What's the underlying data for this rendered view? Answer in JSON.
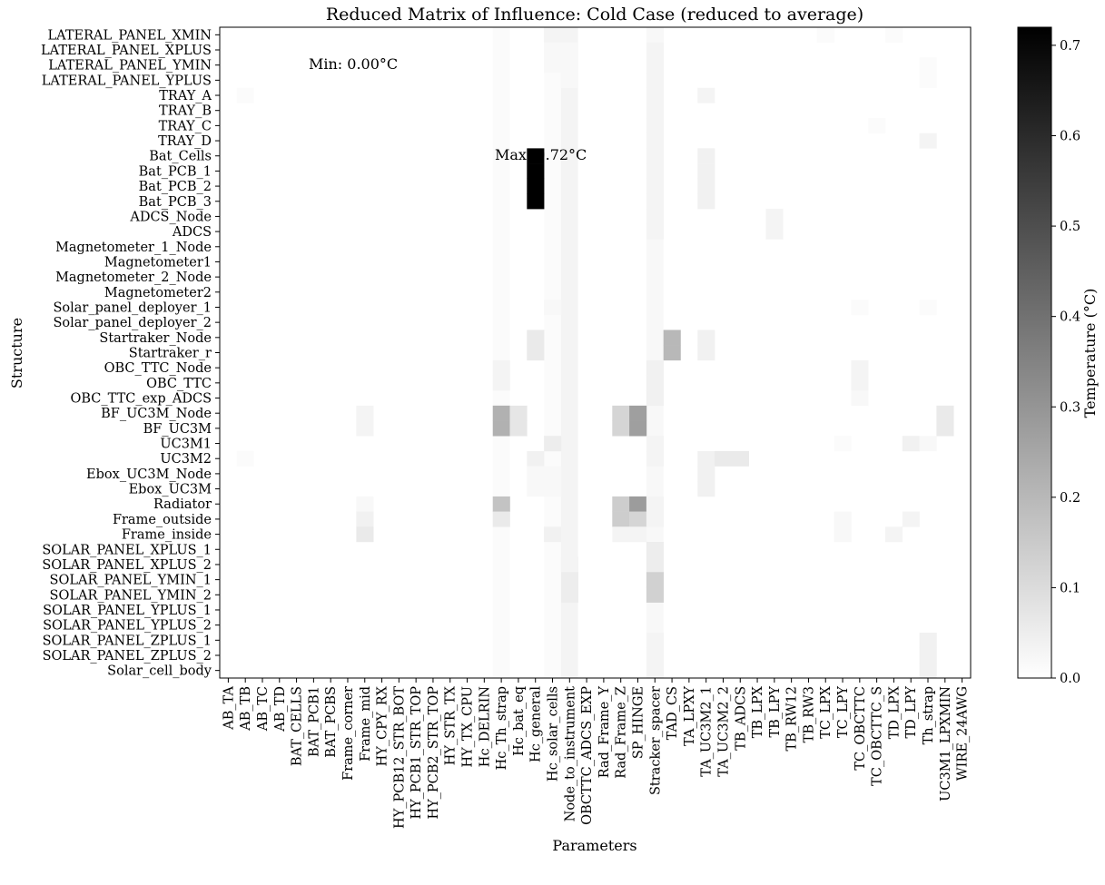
{
  "chart_data": {
    "type": "heatmap",
    "title": "Reduced Matrix of Influence: Cold Case (reduced to average)",
    "xlabel": "Parameters",
    "ylabel": "Structure",
    "colorbar_label": "Temperature (°C)",
    "colormap": "white-to-black (grayscale)",
    "vmin": 0.0,
    "vmax": 0.72,
    "colorbar_ticks": [
      "0.0",
      "0.1",
      "0.2",
      "0.3",
      "0.4",
      "0.5",
      "0.6",
      "0.7"
    ],
    "annotations": {
      "min_text": "Min: 0.00°C",
      "min_color": "#0000ff",
      "max_text": "Max: 0.72°C",
      "max_color": "#ff0000"
    },
    "x_categories": [
      "AB_TA",
      "AB_TB",
      "AB_TC",
      "AB_TD",
      "BAT_CELLS",
      "BAT_PCB1",
      "BAT_PCBS",
      "Frame_corner",
      "Frame_mid",
      "HY_CPY_RX",
      "HY_PCB12_STR_BOT",
      "HY_PCB1_STR_TOP",
      "HY_PCB2_STR_TOP",
      "HY_STR_TX",
      "HY_TX_CPU",
      "Hc_DELRIN",
      "Hc_Th_strap",
      "Hc_bat_eq",
      "Hc_general",
      "Hc_solar_cells",
      "Node_to_instrument",
      "OBCTTC_ADCS_EXP",
      "Rad_Frame_Y",
      "Rad_Frame_Z",
      "SP_HINGE",
      "Stracker_spacer",
      "TAD_CS",
      "TA_LPXY",
      "TA_UC3M2_1",
      "TA_UC3M2_2",
      "TB_ADCS",
      "TB_LPX",
      "TB_LPY",
      "TB_RW12",
      "TB_RW3",
      "TC_LPX",
      "TC_LPY",
      "TC_OBCTTC",
      "TC_OBCTTC_S",
      "TD_LPX",
      "TD_LPY",
      "Th_strap",
      "UC3M1_LPXMIN",
      "WIRE_24AWG"
    ],
    "y_categories": [
      "LATERAL_PANEL_XMIN",
      "LATERAL_PANEL_XPLUS",
      "LATERAL_PANEL_YMIN",
      "LATERAL_PANEL_YPLUS",
      "TRAY_A",
      "TRAY_B",
      "TRAY_C",
      "TRAY_D",
      "Bat_Cells",
      "Bat_PCB_1",
      "Bat_PCB_2",
      "Bat_PCB_3",
      "ADCS_Node",
      "ADCS",
      "Magnetometer_1_Node",
      "Magnetometer1",
      "Magnetometer_2_Node",
      "Magnetometer2",
      "Solar_panel_deployer_1",
      "Solar_panel_deployer_2",
      "Startraker_Node",
      "Startraker_r",
      "OBC_TTC_Node",
      "OBC_TTC",
      "OBC_TTC_exp_ADCS",
      "BF_UC3M_Node",
      "BF_UC3M",
      "UC3M1",
      "UC3M2",
      "Ebox_UC3M_Node",
      "Ebox_UC3M",
      "Radiator",
      "Frame_outside",
      "Frame_inside",
      "SOLAR_PANEL_XPLUS_1",
      "SOLAR_PANEL_XPLUS_2",
      "SOLAR_PANEL_YMIN_1",
      "SOLAR_PANEL_YMIN_2",
      "SOLAR_PANEL_YPLUS_1",
      "SOLAR_PANEL_YPLUS_2",
      "SOLAR_PANEL_ZPLUS_1",
      "SOLAR_PANEL_ZPLUS_2",
      "Solar_cell_body"
    ],
    "cells": [
      [
        "Bat_Cells",
        "Hc_general",
        0.72
      ],
      [
        "Bat_PCB_1",
        "Hc_general",
        0.72
      ],
      [
        "Bat_PCB_2",
        "Hc_general",
        0.72
      ],
      [
        "Bat_PCB_3",
        "Hc_general",
        0.72
      ],
      [
        "LATERAL_PANEL_XMIN",
        "Hc_solar_cells",
        0.03
      ],
      [
        "LATERAL_PANEL_XMIN",
        "Stracker_spacer",
        0.02
      ],
      [
        "LATERAL_PANEL_XMIN",
        "TD_LPX",
        0.01
      ],
      [
        "LATERAL_PANEL_XMIN",
        "TC_LPX",
        0.01
      ],
      [
        "LATERAL_PANEL_XPLUS",
        "Hc_solar_cells",
        0.02
      ],
      [
        "LATERAL_PANEL_XPLUS",
        "Node_to_instrument",
        0.02
      ],
      [
        "LATERAL_PANEL_XPLUS",
        "Stracker_spacer",
        0.03
      ],
      [
        "LATERAL_PANEL_YMIN",
        "Hc_solar_cells",
        0.02
      ],
      [
        "LATERAL_PANEL_YMIN",
        "Node_to_instrument",
        0.02
      ],
      [
        "LATERAL_PANEL_YMIN",
        "Stracker_spacer",
        0.03
      ],
      [
        "LATERAL_PANEL_YMIN",
        "Th_strap",
        0.01
      ],
      [
        "LATERAL_PANEL_YPLUS",
        "Node_to_instrument",
        0.02
      ],
      [
        "LATERAL_PANEL_YPLUS",
        "Stracker_spacer",
        0.03
      ],
      [
        "LATERAL_PANEL_YPLUS",
        "Th_strap",
        0.01
      ],
      [
        "TRAY_A",
        "TA_UC3M2_1",
        0.03
      ],
      [
        "TRAY_A",
        "Stracker_spacer",
        0.03
      ],
      [
        "TRAY_A",
        "AB_TB",
        0.01
      ],
      [
        "TRAY_B",
        "Stracker_spacer",
        0.03
      ],
      [
        "TRAY_C",
        "Stracker_spacer",
        0.03
      ],
      [
        "TRAY_C",
        "TC_OBCTTC_S",
        0.01
      ],
      [
        "TRAY_D",
        "Stracker_spacer",
        0.03
      ],
      [
        "TRAY_D",
        "Th_strap",
        0.03
      ],
      [
        "Bat_Cells",
        "TA_UC3M2_1",
        0.04
      ],
      [
        "Bat_PCB_1",
        "TA_UC3M2_1",
        0.04
      ],
      [
        "Bat_PCB_2",
        "TA_UC3M2_1",
        0.04
      ],
      [
        "Bat_PCB_3",
        "TA_UC3M2_1",
        0.04
      ],
      [
        "Bat_Cells",
        "Stracker_spacer",
        0.03
      ],
      [
        "Bat_PCB_1",
        "Stracker_spacer",
        0.03
      ],
      [
        "Bat_PCB_2",
        "Stracker_spacer",
        0.03
      ],
      [
        "Bat_PCB_3",
        "Stracker_spacer",
        0.03
      ],
      [
        "ADCS_Node",
        "TB_LPY",
        0.03
      ],
      [
        "ADCS",
        "TB_LPY",
        0.03
      ],
      [
        "ADCS_Node",
        "Stracker_spacer",
        0.03
      ],
      [
        "ADCS",
        "Stracker_spacer",
        0.03
      ],
      [
        "Solar_panel_deployer_1",
        "Hc_solar_cells",
        0.02
      ],
      [
        "Solar_panel_deployer_1",
        "TC_OBCTTC",
        0.01
      ],
      [
        "Solar_panel_deployer_1",
        "Th_strap",
        0.01
      ],
      [
        "Startraker_Node",
        "Hc_general",
        0.06
      ],
      [
        "Startraker_r",
        "Hc_general",
        0.06
      ],
      [
        "Startraker_Node",
        "TAD_CS",
        0.2
      ],
      [
        "Startraker_r",
        "TAD_CS",
        0.2
      ],
      [
        "Startraker_Node",
        "TA_UC3M2_1",
        0.04
      ],
      [
        "Startraker_r",
        "TA_UC3M2_1",
        0.04
      ],
      [
        "OBC_TTC_Node",
        "Hc_Th_strap",
        0.03
      ],
      [
        "OBC_TTC",
        "Hc_Th_strap",
        0.03
      ],
      [
        "OBC_TTC_Node",
        "TC_OBCTTC",
        0.03
      ],
      [
        "OBC_TTC",
        "TC_OBCTTC",
        0.03
      ],
      [
        "OBC_TTC_exp_ADCS",
        "TC_OBCTTC",
        0.02
      ],
      [
        "OBC_TTC_Node",
        "Stracker_spacer",
        0.04
      ],
      [
        "OBC_TTC",
        "Stracker_spacer",
        0.04
      ],
      [
        "OBC_TTC_exp_ADCS",
        "Stracker_spacer",
        0.04
      ],
      [
        "BF_UC3M_Node",
        "Hc_Th_strap",
        0.22
      ],
      [
        "BF_UC3M",
        "Hc_Th_strap",
        0.22
      ],
      [
        "BF_UC3M_Node",
        "Hc_bat_eq",
        0.07
      ],
      [
        "BF_UC3M",
        "Hc_bat_eq",
        0.07
      ],
      [
        "BF_UC3M_Node",
        "Rad_Frame_Z",
        0.12
      ],
      [
        "BF_UC3M",
        "Rad_Frame_Z",
        0.12
      ],
      [
        "BF_UC3M_Node",
        "SP_HINGE",
        0.27
      ],
      [
        "BF_UC3M",
        "SP_HINGE",
        0.27
      ],
      [
        "BF_UC3M_Node",
        "Frame_mid",
        0.03
      ],
      [
        "BF_UC3M",
        "Frame_mid",
        0.03
      ],
      [
        "BF_UC3M_Node",
        "UC3M1_LPXMIN",
        0.06
      ],
      [
        "BF_UC3M",
        "UC3M1_LPXMIN",
        0.06
      ],
      [
        "UC3M1",
        "Hc_solar_cells",
        0.05
      ],
      [
        "UC3M1",
        "TD_LPY",
        0.04
      ],
      [
        "UC3M1",
        "Th_strap",
        0.02
      ],
      [
        "UC3M1",
        "TC_LPY",
        0.01
      ],
      [
        "UC3M1",
        "Stracker_spacer",
        0.03
      ],
      [
        "UC3M2",
        "TA_UC3M2_1",
        0.04
      ],
      [
        "UC3M2",
        "TA_UC3M2_2",
        0.06
      ],
      [
        "UC3M2",
        "TB_ADCS",
        0.06
      ],
      [
        "UC3M2",
        "Hc_general",
        0.04
      ],
      [
        "UC3M2",
        "AB_TB",
        0.01
      ],
      [
        "UC3M2",
        "Stracker_spacer",
        0.03
      ],
      [
        "Ebox_UC3M_Node",
        "Hc_general",
        0.02
      ],
      [
        "Ebox_UC3M_Node",
        "Hc_solar_cells",
        0.02
      ],
      [
        "Ebox_UC3M_Node",
        "TA_UC3M2_1",
        0.04
      ],
      [
        "Ebox_UC3M",
        "Hc_general",
        0.02
      ],
      [
        "Ebox_UC3M",
        "Hc_solar_cells",
        0.02
      ],
      [
        "Ebox_UC3M",
        "TA_UC3M2_1",
        0.04
      ],
      [
        "Radiator",
        "Hc_Th_strap",
        0.17
      ],
      [
        "Radiator",
        "Rad_Frame_Z",
        0.14
      ],
      [
        "Radiator",
        "SP_HINGE",
        0.28
      ],
      [
        "Radiator",
        "Frame_mid",
        0.02
      ],
      [
        "Radiator",
        "Stracker_spacer",
        0.03
      ],
      [
        "Frame_outside",
        "Hc_Th_strap",
        0.06
      ],
      [
        "Frame_outside",
        "Rad_Frame_Z",
        0.14
      ],
      [
        "Frame_outside",
        "SP_HINGE",
        0.12
      ],
      [
        "Frame_outside",
        "Frame_mid",
        0.04
      ],
      [
        "Frame_outside",
        "TC_LPY",
        0.02
      ],
      [
        "Frame_outside",
        "TD_LPY",
        0.03
      ],
      [
        "Frame_outside",
        "Stracker_spacer",
        0.03
      ],
      [
        "Frame_inside",
        "Frame_mid",
        0.06
      ],
      [
        "Frame_inside",
        "Hc_solar_cells",
        0.04
      ],
      [
        "Frame_inside",
        "Rad_Frame_Z",
        0.03
      ],
      [
        "Frame_inside",
        "SP_HINGE",
        0.03
      ],
      [
        "Frame_inside",
        "TD_LPX",
        0.03
      ],
      [
        "Frame_inside",
        "TC_LPY",
        0.02
      ],
      [
        "SOLAR_PANEL_XPLUS_1",
        "Stracker_spacer",
        0.05
      ],
      [
        "SOLAR_PANEL_XPLUS_2",
        "Stracker_spacer",
        0.05
      ],
      [
        "SOLAR_PANEL_XPLUS_2",
        "Node_to_instrument",
        0.03
      ],
      [
        "SOLAR_PANEL_YMIN_1",
        "Stracker_spacer",
        0.13
      ],
      [
        "SOLAR_PANEL_YMIN_2",
        "Stracker_spacer",
        0.13
      ],
      [
        "SOLAR_PANEL_YMIN_1",
        "Node_to_instrument",
        0.05
      ],
      [
        "SOLAR_PANEL_YMIN_2",
        "Node_to_instrument",
        0.05
      ],
      [
        "SOLAR_PANEL_ZPLUS_1",
        "Th_strap",
        0.04
      ],
      [
        "SOLAR_PANEL_ZPLUS_2",
        "Th_strap",
        0.04
      ],
      [
        "Solar_cell_body",
        "Th_strap",
        0.04
      ],
      [
        "SOLAR_PANEL_ZPLUS_1",
        "Stracker_spacer",
        0.03
      ],
      [
        "SOLAR_PANEL_ZPLUS_2",
        "Stracker_spacer",
        0.03
      ],
      [
        "Solar_cell_body",
        "Stracker_spacer",
        0.03
      ]
    ],
    "column_background": [
      [
        "Node_to_instrument",
        0.03
      ],
      [
        "Hc_Th_strap",
        0.01
      ],
      [
        "Stracker_spacer",
        0.02
      ],
      [
        "Hc_solar_cells",
        0.01
      ]
    ]
  }
}
